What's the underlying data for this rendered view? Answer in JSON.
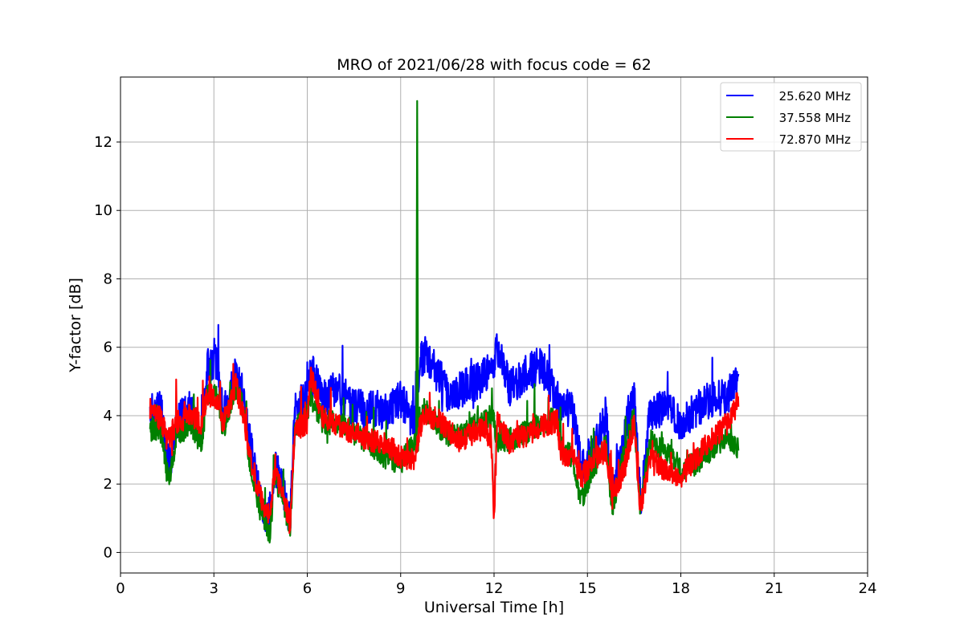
{
  "chart_data": {
    "type": "line",
    "title": "MRO of 2021/06/28 with focus code = 62",
    "xlabel": "Universal Time [h]",
    "ylabel": "Y-factor [dB]",
    "xlim": [
      0,
      24
    ],
    "ylim": [
      -0.6,
      13.9
    ],
    "xticks": [
      0,
      3,
      6,
      9,
      12,
      15,
      18,
      21,
      24
    ],
    "yticks": [
      0,
      2,
      4,
      6,
      8,
      10,
      12
    ],
    "grid": true,
    "legend_position": "top-right",
    "series": [
      {
        "name": "25.620 MHz",
        "color": "#0000ff",
        "x": [
          0.95,
          1.3,
          1.5,
          1.6,
          1.8,
          2.2,
          2.6,
          2.8,
          3.1,
          3.3,
          3.7,
          3.9,
          4.2,
          4.5,
          4.8,
          4.95,
          5.2,
          5.45,
          5.6,
          6.0,
          6.1,
          6.5,
          7.0,
          7.5,
          8.0,
          8.5,
          9.0,
          9.3,
          9.5,
          9.6,
          9.8,
          10.2,
          10.6,
          11.0,
          11.5,
          12.0,
          12.1,
          12.5,
          13.0,
          13.5,
          14.0,
          14.2,
          14.5,
          14.8,
          15.2,
          15.6,
          15.8,
          16.2,
          16.5,
          16.7,
          17.0,
          17.5,
          18.0,
          18.5,
          19.0,
          19.5,
          19.85
        ],
        "y": [
          4.1,
          4.3,
          3.0,
          2.5,
          3.8,
          4.2,
          3.5,
          5.5,
          5.6,
          4.0,
          5.2,
          4.8,
          3.0,
          1.5,
          0.7,
          2.5,
          2.0,
          0.9,
          4.3,
          4.5,
          5.4,
          4.5,
          4.8,
          4.2,
          4.3,
          4.1,
          4.5,
          4.0,
          3.8,
          5.5,
          5.8,
          5.2,
          4.5,
          4.8,
          5.0,
          5.5,
          6.0,
          4.8,
          5.2,
          5.5,
          4.5,
          4.3,
          4.2,
          2.5,
          3.0,
          4.0,
          1.5,
          3.5,
          4.5,
          1.5,
          4.0,
          4.3,
          3.8,
          4.2,
          4.5,
          4.6,
          5.0
        ]
      },
      {
        "name": "37.558 MHz",
        "color": "#008000",
        "x": [
          0.95,
          1.3,
          1.5,
          1.6,
          1.8,
          2.2,
          2.6,
          2.8,
          3.1,
          3.3,
          3.7,
          3.9,
          4.2,
          4.5,
          4.8,
          4.95,
          5.2,
          5.45,
          5.6,
          6.0,
          6.1,
          6.5,
          7.0,
          7.5,
          8.0,
          8.5,
          9.0,
          9.3,
          9.5,
          9.53,
          9.56,
          9.6,
          9.8,
          10.2,
          10.6,
          11.0,
          11.5,
          12.0,
          12.1,
          12.5,
          13.0,
          13.5,
          14.0,
          14.2,
          14.5,
          14.8,
          15.2,
          15.6,
          15.8,
          16.2,
          16.5,
          16.7,
          17.0,
          17.5,
          18.0,
          18.5,
          19.0,
          19.5,
          19.85
        ],
        "y": [
          3.7,
          3.5,
          2.3,
          2.2,
          3.3,
          3.8,
          3.2,
          4.7,
          4.6,
          3.6,
          4.8,
          4.4,
          2.4,
          1.2,
          0.5,
          2.2,
          1.7,
          0.6,
          3.7,
          4.0,
          4.6,
          3.8,
          3.8,
          3.5,
          3.2,
          2.8,
          2.6,
          3.0,
          3.2,
          13.2,
          3.2,
          4.0,
          4.2,
          3.7,
          3.4,
          3.5,
          3.8,
          4.0,
          3.2,
          3.3,
          3.5,
          3.8,
          3.9,
          3.0,
          2.8,
          1.5,
          2.5,
          3.2,
          1.3,
          3.0,
          4.0,
          1.2,
          3.3,
          3.0,
          2.4,
          2.6,
          3.0,
          3.4,
          3.0
        ]
      },
      {
        "name": "72.870 MHz",
        "color": "#ff0000",
        "x": [
          0.95,
          1.3,
          1.5,
          1.6,
          1.8,
          2.2,
          2.6,
          2.8,
          3.1,
          3.3,
          3.7,
          3.9,
          4.2,
          4.5,
          4.8,
          4.95,
          5.2,
          5.45,
          5.6,
          6.0,
          6.1,
          6.5,
          7.0,
          7.5,
          8.0,
          8.5,
          9.0,
          9.3,
          9.5,
          9.6,
          9.8,
          10.2,
          10.6,
          11.0,
          11.5,
          11.9,
          12.0,
          12.1,
          12.5,
          13.0,
          13.5,
          14.0,
          14.2,
          14.5,
          14.8,
          15.2,
          15.6,
          15.8,
          16.2,
          16.5,
          16.7,
          17.0,
          17.5,
          18.0,
          18.5,
          19.0,
          19.5,
          19.85
        ],
        "y": [
          4.2,
          3.9,
          3.3,
          3.4,
          3.8,
          4.0,
          3.8,
          4.6,
          4.5,
          3.8,
          4.9,
          4.2,
          2.6,
          1.6,
          1.0,
          2.4,
          1.8,
          0.8,
          3.6,
          3.8,
          5.2,
          4.0,
          3.7,
          3.5,
          3.3,
          3.2,
          2.8,
          2.7,
          2.8,
          3.6,
          4.0,
          3.9,
          3.5,
          3.3,
          3.6,
          3.4,
          1.0,
          3.8,
          3.2,
          3.4,
          3.7,
          3.8,
          2.8,
          2.9,
          2.2,
          2.7,
          3.0,
          1.6,
          2.5,
          3.8,
          1.1,
          2.8,
          2.4,
          2.2,
          2.8,
          3.3,
          3.8,
          4.5
        ]
      }
    ]
  }
}
